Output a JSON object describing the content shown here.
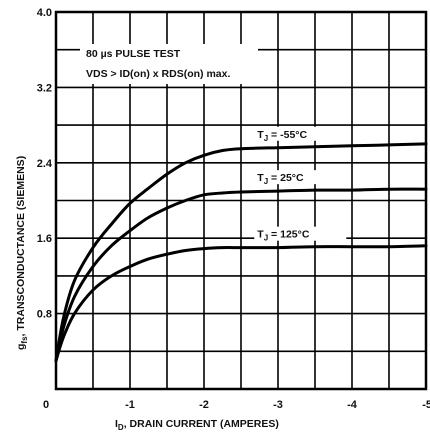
{
  "chart_data": {
    "type": "line",
    "xlabel": "ID, DRAIN CURRENT (AMPERES)",
    "xlabel_main": "I",
    "xlabel_sub": "D",
    "xlabel_rest": ", DRAIN CURRENT (AMPERES)",
    "ylabel": "gfs, TRANSCONDUCTANCE (SIEMENS)",
    "ylabel_main": "g",
    "ylabel_sub": "fs",
    "ylabel_rest": ", TRANSCONDUCTANCE (SIEMENS)",
    "xlim": [
      0,
      -5
    ],
    "ylim": [
      0,
      4.0
    ],
    "x_ticks": [
      0,
      -1,
      -2,
      -3,
      -4,
      -5
    ],
    "x_tick_labels": [
      "0",
      "-1",
      "-2",
      "-3",
      "-4",
      "-5"
    ],
    "y_ticks": [
      0.8,
      1.6,
      2.4,
      3.2,
      4.0
    ],
    "y_tick_labels": [
      "0.8",
      "1.6",
      "2.4",
      "3.2",
      "4.0"
    ],
    "grid": true,
    "notes": {
      "line1": "80 µs PULSE TEST",
      "line2": "VDS > ID(on) x RDS(on) max."
    },
    "series": [
      {
        "name": "TJ = -55°C",
        "label_main": "T",
        "label_sub": "J",
        "label_rest": " = -55°C",
        "x": [
          0,
          -0.1,
          -0.25,
          -0.5,
          -0.75,
          -1.0,
          -1.25,
          -1.5,
          -1.75,
          -2.0,
          -2.25,
          -2.5,
          -3.0,
          -3.5,
          -4.0,
          -4.5,
          -5.0
        ],
        "y": [
          0.3,
          0.75,
          1.15,
          1.5,
          1.75,
          1.97,
          2.13,
          2.28,
          2.4,
          2.48,
          2.53,
          2.55,
          2.56,
          2.57,
          2.58,
          2.59,
          2.6
        ]
      },
      {
        "name": "TJ = 25°C",
        "label_main": "T",
        "label_sub": "J",
        "label_rest": " = 25°C",
        "x": [
          0,
          -0.1,
          -0.25,
          -0.5,
          -0.75,
          -1.0,
          -1.25,
          -1.5,
          -1.75,
          -2.0,
          -2.25,
          -2.5,
          -3.0,
          -3.5,
          -4.0,
          -4.5,
          -5.0
        ],
        "y": [
          0.3,
          0.65,
          0.98,
          1.3,
          1.52,
          1.68,
          1.82,
          1.92,
          2.0,
          2.06,
          2.08,
          2.09,
          2.1,
          2.11,
          2.11,
          2.12,
          2.12
        ]
      },
      {
        "name": "TJ = 125°C",
        "label_main": "T",
        "label_sub": "J",
        "label_rest": " = 125°C",
        "x": [
          0,
          -0.1,
          -0.25,
          -0.5,
          -0.75,
          -1.0,
          -1.25,
          -1.5,
          -1.75,
          -2.0,
          -2.25,
          -2.5,
          -3.0,
          -3.5,
          -4.0,
          -4.5,
          -5.0
        ],
        "y": [
          0.3,
          0.55,
          0.8,
          1.05,
          1.2,
          1.3,
          1.38,
          1.43,
          1.47,
          1.49,
          1.5,
          1.5,
          1.5,
          1.51,
          1.51,
          1.51,
          1.52
        ]
      }
    ]
  }
}
